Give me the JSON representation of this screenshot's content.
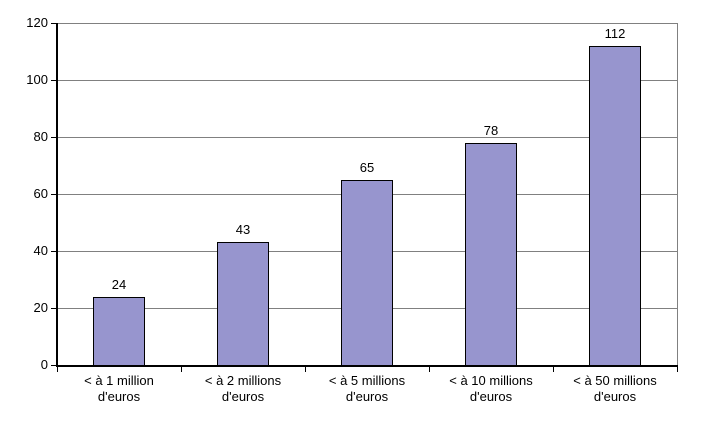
{
  "chart_data": {
    "type": "bar",
    "title": "",
    "xlabel": "",
    "ylabel": "",
    "categories": [
      "< à 1 million\nd'euros",
      "< à 2 millions\nd'euros",
      "< à 5 millions\nd'euros",
      "< à 10 millions\nd'euros",
      "< à 50 millions\nd'euros"
    ],
    "values": [
      24,
      43,
      65,
      78,
      112
    ],
    "data_labels": [
      "24",
      "43",
      "65",
      "78",
      "112"
    ],
    "ylim": [
      0,
      120
    ],
    "ytick_step": 20,
    "ytick_labels": [
      "0",
      "20",
      "40",
      "60",
      "80",
      "100",
      "120"
    ],
    "grid": true,
    "legend": false,
    "colors": {
      "bar_fill": "#9795CE",
      "bar_border": "#000000",
      "gridline": "#808080",
      "axis": "#000000",
      "background": "#FFFFFF",
      "text": "#000000"
    }
  }
}
